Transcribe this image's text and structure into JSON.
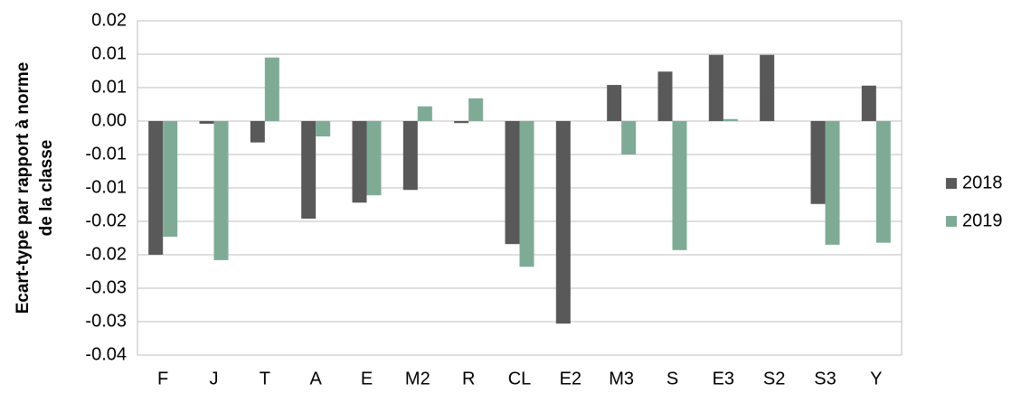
{
  "chart_data": {
    "type": "bar",
    "y_label": [
      "Ecart-type par rapport à norme",
      "de la classe"
    ],
    "categories": [
      "F",
      "J",
      "T",
      "A",
      "E",
      "M2",
      "R",
      "CL",
      "E2",
      "M3",
      "S",
      "E3",
      "S2",
      "S3",
      "Y"
    ],
    "series": [
      {
        "name": "2018",
        "color": "#595959",
        "values": [
          -0.02,
          -0.0004,
          -0.0032,
          -0.0146,
          -0.0122,
          -0.0103,
          -0.0003,
          -0.0184,
          -0.0303,
          0.0054,
          0.0074,
          0.0099,
          0.0099,
          -0.0124,
          0.0053
        ]
      },
      {
        "name": "2019",
        "color": "#7fab96",
        "values": [
          -0.0173,
          -0.0208,
          0.0095,
          -0.0023,
          -0.0111,
          0.0022,
          0.0034,
          -0.0218,
          null,
          -0.005,
          -0.0193,
          0.0003,
          null,
          -0.0185,
          -0.0182
        ]
      }
    ],
    "ylim": [
      -0.035,
      0.015
    ],
    "yticks": [
      {
        "value": 0.015,
        "label": "0.02"
      },
      {
        "value": 0.01,
        "label": "0.01"
      },
      {
        "value": 0.005,
        "label": "0.01"
      },
      {
        "value": 0,
        "label": "0.00"
      },
      {
        "value": -0.005,
        "label": "-0.01"
      },
      {
        "value": -0.01,
        "label": "-0.01"
      },
      {
        "value": -0.015,
        "label": "-0.02"
      },
      {
        "value": -0.02,
        "label": "-0.02"
      },
      {
        "value": -0.025,
        "label": "-0.03"
      },
      {
        "value": -0.03,
        "label": "-0.03"
      },
      {
        "value": -0.035,
        "label": "-0.04"
      }
    ],
    "grid": true,
    "legend": "right"
  }
}
